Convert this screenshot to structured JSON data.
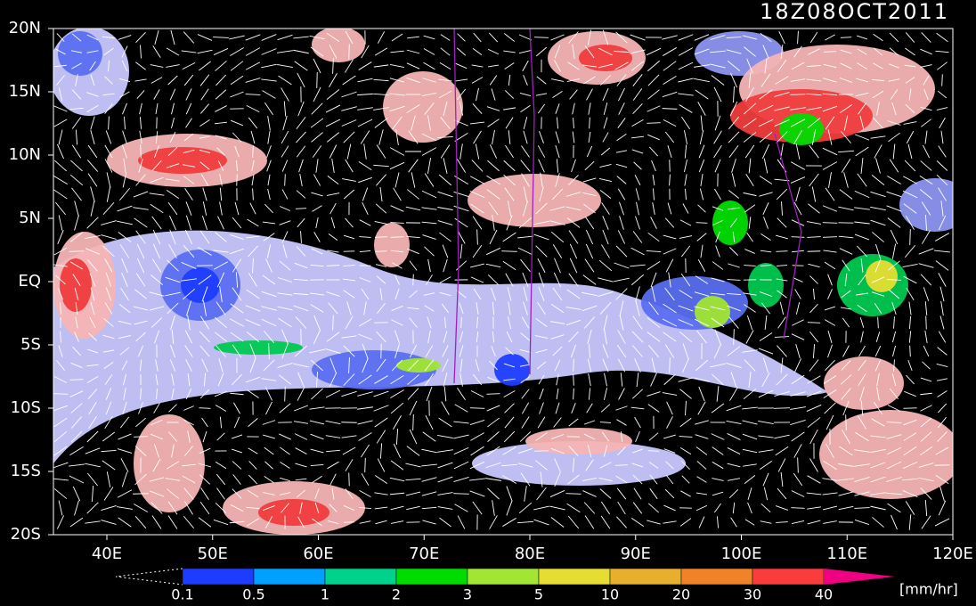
{
  "title": "18Z08OCT2011",
  "lat_labels": [
    "20N",
    "15N",
    "10N",
    "5N",
    "EQ",
    "5S",
    "10S",
    "15S",
    "20S"
  ],
  "lon_labels": [
    "40E",
    "50E",
    "60E",
    "70E",
    "80E",
    "90E",
    "100E",
    "110E",
    "120E"
  ],
  "colorbar": {
    "levels": [
      0.1,
      0.5,
      1,
      2,
      3,
      5,
      10,
      20,
      30,
      40
    ],
    "colors": [
      "#1e3cff",
      "#00a0ff",
      "#00d28c",
      "#00dc00",
      "#a0e632",
      "#e6dc32",
      "#e6af2d",
      "#f08228",
      "#fa3c3c",
      "#f00082"
    ],
    "unit": "[mm/hr]"
  }
}
